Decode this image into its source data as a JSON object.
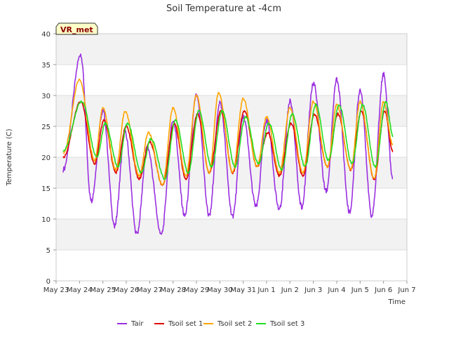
{
  "chart_data": {
    "type": "line",
    "title": "Soil Temperature at -4cm",
    "xlabel": "Time",
    "ylabel": "Temperature (C)",
    "badge": "VR_met",
    "ylim": [
      0,
      40
    ],
    "yticks": [
      0,
      5,
      10,
      15,
      20,
      25,
      30,
      35,
      40
    ],
    "xlim": [
      0,
      15
    ],
    "xticks": [
      0,
      1,
      2,
      3,
      4,
      5,
      6,
      7,
      8,
      9,
      10,
      11,
      12,
      13,
      14,
      15
    ],
    "xtick_labels": [
      "May 23",
      "May 24",
      "May 25",
      "May 26",
      "May 27",
      "May 28",
      "May 29",
      "May 30",
      "May 31",
      "Jun 1",
      "Jun 2",
      "Jun 3",
      "Jun 4",
      "Jun 5",
      "Jun 6",
      "Jun 7"
    ],
    "grid": true,
    "legend_position": "bottom",
    "series": [
      {
        "name": "Tair",
        "color": "#9b30e0",
        "peaks": [
          [
            0.3,
            18.0
          ],
          [
            1.05,
            36.5
          ],
          [
            1.5,
            13.0
          ],
          [
            2.0,
            27.5
          ],
          [
            2.5,
            9.0
          ],
          [
            2.95,
            24.0
          ],
          [
            3.45,
            7.5
          ],
          [
            3.9,
            21.5
          ],
          [
            4.5,
            7.5
          ],
          [
            5.0,
            26.0
          ],
          [
            5.5,
            10.5
          ],
          [
            6.0,
            30.0
          ],
          [
            6.55,
            10.5
          ],
          [
            7.0,
            29.0
          ],
          [
            7.55,
            10.5
          ],
          [
            8.0,
            26.5
          ],
          [
            8.55,
            12.0
          ],
          [
            9.0,
            26.0
          ],
          [
            9.55,
            11.5
          ],
          [
            10.0,
            29.0
          ],
          [
            10.5,
            12.0
          ],
          [
            11.0,
            32.0
          ],
          [
            11.55,
            14.5
          ],
          [
            12.0,
            32.5
          ],
          [
            12.55,
            11.0
          ],
          [
            13.0,
            31.0
          ],
          [
            13.5,
            10.5
          ],
          [
            14.0,
            33.5
          ],
          [
            14.4,
            16.5
          ]
        ]
      },
      {
        "name": "Tsoil set 1",
        "color": "#e00000",
        "peaks": [
          [
            0.3,
            20.0
          ],
          [
            1.05,
            29.0
          ],
          [
            1.65,
            19.0
          ],
          [
            2.05,
            26.0
          ],
          [
            2.55,
            17.5
          ],
          [
            3.0,
            25.0
          ],
          [
            3.55,
            16.5
          ],
          [
            4.0,
            22.5
          ],
          [
            4.55,
            15.5
          ],
          [
            5.05,
            25.5
          ],
          [
            5.55,
            16.5
          ],
          [
            6.05,
            27.0
          ],
          [
            6.55,
            17.5
          ],
          [
            7.05,
            27.5
          ],
          [
            7.55,
            17.5
          ],
          [
            8.05,
            27.5
          ],
          [
            8.6,
            18.5
          ],
          [
            9.05,
            24.0
          ],
          [
            9.55,
            17.0
          ],
          [
            10.05,
            25.5
          ],
          [
            10.55,
            17.0
          ],
          [
            11.05,
            27.0
          ],
          [
            11.6,
            18.5
          ],
          [
            12.05,
            27.0
          ],
          [
            12.6,
            18.0
          ],
          [
            13.05,
            27.5
          ],
          [
            13.6,
            16.5
          ],
          [
            14.05,
            27.5
          ],
          [
            14.4,
            21.0
          ]
        ]
      },
      {
        "name": "Tsoil set 2",
        "color": "#ffa500",
        "peaks": [
          [
            0.3,
            20.5
          ],
          [
            1.0,
            32.5
          ],
          [
            1.65,
            19.5
          ],
          [
            2.0,
            28.0
          ],
          [
            2.55,
            18.0
          ],
          [
            2.95,
            27.5
          ],
          [
            3.55,
            17.0
          ],
          [
            3.95,
            24.0
          ],
          [
            4.55,
            15.5
          ],
          [
            5.0,
            28.0
          ],
          [
            5.55,
            17.0
          ],
          [
            6.0,
            30.0
          ],
          [
            6.55,
            17.5
          ],
          [
            6.95,
            30.5
          ],
          [
            7.55,
            17.5
          ],
          [
            8.0,
            29.5
          ],
          [
            8.6,
            18.5
          ],
          [
            9.0,
            26.5
          ],
          [
            9.55,
            17.5
          ],
          [
            10.0,
            28.0
          ],
          [
            10.55,
            17.5
          ],
          [
            11.0,
            29.0
          ],
          [
            11.6,
            18.5
          ],
          [
            12.0,
            28.5
          ],
          [
            12.6,
            18.0
          ],
          [
            13.0,
            29.0
          ],
          [
            13.6,
            16.5
          ],
          [
            14.0,
            29.0
          ],
          [
            14.4,
            22.0
          ]
        ]
      },
      {
        "name": "Tsoil set 3",
        "color": "#22dd22",
        "peaks": [
          [
            0.3,
            21.0
          ],
          [
            1.1,
            29.0
          ],
          [
            1.75,
            20.0
          ],
          [
            2.1,
            25.5
          ],
          [
            2.65,
            18.5
          ],
          [
            3.05,
            25.5
          ],
          [
            3.65,
            17.5
          ],
          [
            4.05,
            23.0
          ],
          [
            4.65,
            16.5
          ],
          [
            5.1,
            26.0
          ],
          [
            5.65,
            17.5
          ],
          [
            6.1,
            27.5
          ],
          [
            6.65,
            18.5
          ],
          [
            7.1,
            27.5
          ],
          [
            7.65,
            18.5
          ],
          [
            8.1,
            26.5
          ],
          [
            8.65,
            19.0
          ],
          [
            9.1,
            25.5
          ],
          [
            9.65,
            18.0
          ],
          [
            10.1,
            27.0
          ],
          [
            10.65,
            18.5
          ],
          [
            11.1,
            28.5
          ],
          [
            11.65,
            19.5
          ],
          [
            12.1,
            28.5
          ],
          [
            12.65,
            19.0
          ],
          [
            13.1,
            28.5
          ],
          [
            13.65,
            18.5
          ],
          [
            14.1,
            29.0
          ],
          [
            14.4,
            23.5
          ]
        ]
      }
    ]
  }
}
